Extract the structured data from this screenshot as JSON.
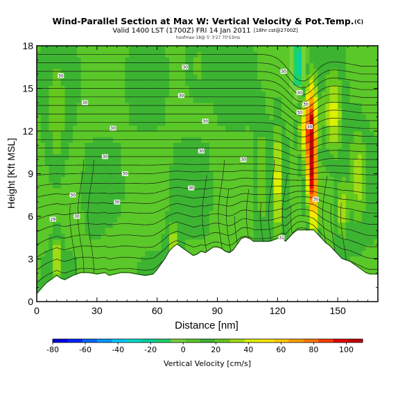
{
  "header": {
    "title": "Wind-Parallel Section at Max W: Vertical Velocity & Pot.Temp.",
    "title_mark": "(C)",
    "valid_line": "Valid 1400 LST (1700Z) FRI 14 Jan 2011",
    "valid_suffix": "[18hr cst@2700Z]",
    "run_line": "hoofmax-18@  5' 3'27 70'53ms"
  },
  "chart_data": {
    "type": "heatmap",
    "title": "Wind-Parallel Section at Max W: Vertical Velocity & Pot.Temp.",
    "xlabel": "Distance [nm]",
    "ylabel": "Height [Kft MSL]",
    "xlim": [
      0,
      170
    ],
    "ylim": [
      0,
      18
    ],
    "x_ticks": [
      0,
      30,
      60,
      90,
      120,
      150
    ],
    "y_ticks": [
      0,
      3,
      6,
      9,
      12,
      15,
      18
    ],
    "grid": false,
    "colorbar": {
      "label": "Vertical Velocity [cm/s]",
      "ticks": [
        -80,
        -60,
        -40,
        -20,
        0,
        20,
        40,
        60,
        80,
        100
      ],
      "range": [
        -80,
        110
      ],
      "colors": [
        "#0000e6",
        "#0022ff",
        "#0066ff",
        "#0099ff",
        "#00c8ff",
        "#00dcc8",
        "#00d2a0",
        "#1ed269",
        "#78d23c",
        "#5ac828",
        "#3cb432",
        "#64c81e",
        "#a0dc14",
        "#dcf000",
        "#ffe600",
        "#ffc800",
        "#ffa000",
        "#ff7800",
        "#ff3c00",
        "#e60000",
        "#c80000"
      ]
    },
    "terrain": [
      [
        0,
        0.5
      ],
      [
        3,
        1.0
      ],
      [
        5,
        1.3
      ],
      [
        7,
        1.5
      ],
      [
        10,
        1.8
      ],
      [
        12,
        1.6
      ],
      [
        14,
        1.5
      ],
      [
        18,
        1.8
      ],
      [
        22,
        2.0
      ],
      [
        26,
        2.0
      ],
      [
        30,
        1.9
      ],
      [
        34,
        2.0
      ],
      [
        36,
        1.8
      ],
      [
        42,
        2.0
      ],
      [
        46,
        2.0
      ],
      [
        50,
        1.9
      ],
      [
        54,
        1.8
      ],
      [
        58,
        1.9
      ],
      [
        60,
        2.2
      ],
      [
        62,
        2.6
      ],
      [
        64,
        3.0
      ],
      [
        66,
        3.5
      ],
      [
        68,
        3.8
      ],
      [
        70,
        4.0
      ],
      [
        72,
        3.8
      ],
      [
        74,
        3.6
      ],
      [
        76,
        3.4
      ],
      [
        78,
        3.2
      ],
      [
        80,
        3.3
      ],
      [
        82,
        3.5
      ],
      [
        84,
        3.4
      ],
      [
        86,
        3.6
      ],
      [
        88,
        3.8
      ],
      [
        90,
        3.8
      ],
      [
        92,
        3.7
      ],
      [
        94,
        3.5
      ],
      [
        96,
        3.4
      ],
      [
        98,
        3.6
      ],
      [
        100,
        4.0
      ],
      [
        102,
        4.4
      ],
      [
        104,
        4.5
      ],
      [
        106,
        4.4
      ],
      [
        108,
        4.2
      ],
      [
        110,
        4.2
      ],
      [
        112,
        4.2
      ],
      [
        114,
        4.2
      ],
      [
        116,
        4.2
      ],
      [
        118,
        4.3
      ],
      [
        120,
        4.4
      ],
      [
        122,
        4.5
      ],
      [
        124,
        4.2
      ],
      [
        126,
        4.5
      ],
      [
        128,
        4.8
      ],
      [
        130,
        5.0
      ],
      [
        132,
        5.0
      ],
      [
        134,
        5.0
      ],
      [
        136,
        5.0
      ],
      [
        138,
        5.0
      ],
      [
        140,
        4.7
      ],
      [
        142,
        4.4
      ],
      [
        144,
        4.1
      ],
      [
        146,
        3.9
      ],
      [
        148,
        3.6
      ],
      [
        150,
        3.3
      ],
      [
        152,
        3.0
      ],
      [
        154,
        2.9
      ],
      [
        156,
        2.8
      ],
      [
        158,
        2.6
      ],
      [
        160,
        2.4
      ],
      [
        162,
        2.2
      ],
      [
        164,
        2.0
      ],
      [
        166,
        1.9
      ],
      [
        168,
        1.9
      ],
      [
        170,
        1.9
      ]
    ],
    "w_features": [
      {
        "x": 137,
        "y": 10.5,
        "sx": 1.6,
        "sy": 2.8,
        "value": 95
      },
      {
        "x": 134,
        "y": 12.5,
        "sx": 3.5,
        "sy": 2.0,
        "value": 40
      },
      {
        "x": 139,
        "y": 7.0,
        "sx": 1.8,
        "sy": 1.8,
        "value": 35
      },
      {
        "x": 131,
        "y": 16.5,
        "sx": 2.5,
        "sy": 2.0,
        "value": -30
      },
      {
        "x": 129,
        "y": 11.0,
        "sx": 2.0,
        "sy": 3.5,
        "value": -10
      },
      {
        "x": 120,
        "y": 8.5,
        "sx": 1.6,
        "sy": 3.0,
        "value": 30
      },
      {
        "x": 112,
        "y": 9.0,
        "sx": 2.0,
        "sy": 3.0,
        "value": 15
      },
      {
        "x": 148,
        "y": 13.0,
        "sx": 3.0,
        "sy": 2.0,
        "value": 30
      },
      {
        "x": 160,
        "y": 9.0,
        "sx": 3.0,
        "sy": 2.5,
        "value": 20
      },
      {
        "x": 152,
        "y": 6.5,
        "sx": 2.0,
        "sy": 1.5,
        "value": 25
      },
      {
        "x": 80,
        "y": 16.5,
        "sx": 4.0,
        "sy": 1.5,
        "value": 15
      },
      {
        "x": 10,
        "y": 12.5,
        "sx": 3.0,
        "sy": 3.0,
        "value": 15
      },
      {
        "x": 10,
        "y": 3.0,
        "sx": 1.5,
        "sy": 1.2,
        "value": 30
      },
      {
        "x": 68,
        "y": 4.2,
        "sx": 2.0,
        "sy": 1.0,
        "value": 25
      },
      {
        "x": 42,
        "y": 3.5,
        "sx": 5.0,
        "sy": 1.2,
        "value": -8
      }
    ],
    "isentrope_base_heights": [
      1.5,
      2.2,
      3.0,
      3.8,
      4.6,
      5.4,
      6.2,
      6.9,
      7.6,
      8.3,
      9.0,
      9.6,
      10.2,
      10.8,
      11.4,
      12.0,
      12.6,
      13.2,
      13.8,
      14.4,
      15.0,
      15.6,
      16.2,
      16.8,
      17.4
    ],
    "isentrope_labels": [
      {
        "x": 8,
        "y": 5.8,
        "text": "29"
      },
      {
        "x": 20,
        "y": 6.0,
        "text": "30"
      },
      {
        "x": 18,
        "y": 7.5,
        "text": "30"
      },
      {
        "x": 40,
        "y": 7.0,
        "text": "30"
      },
      {
        "x": 44,
        "y": 9.0,
        "text": "30"
      },
      {
        "x": 34,
        "y": 10.2,
        "text": "30"
      },
      {
        "x": 38,
        "y": 12.2,
        "text": "30"
      },
      {
        "x": 24,
        "y": 14.0,
        "text": "30"
      },
      {
        "x": 12,
        "y": 15.9,
        "text": "30"
      },
      {
        "x": 74,
        "y": 16.5,
        "text": "30"
      },
      {
        "x": 72,
        "y": 14.5,
        "text": "30"
      },
      {
        "x": 84,
        "y": 12.7,
        "text": "30"
      },
      {
        "x": 82,
        "y": 10.6,
        "text": "30"
      },
      {
        "x": 77,
        "y": 8.0,
        "text": "30"
      },
      {
        "x": 103,
        "y": 10.0,
        "text": "30"
      },
      {
        "x": 123,
        "y": 16.2,
        "text": "30"
      },
      {
        "x": 131,
        "y": 14.7,
        "text": "30"
      },
      {
        "x": 134,
        "y": 13.9,
        "text": "30"
      },
      {
        "x": 131,
        "y": 13.3,
        "text": "30"
      },
      {
        "x": 136,
        "y": 12.3,
        "text": "30"
      },
      {
        "x": 139,
        "y": 7.2,
        "text": "30"
      },
      {
        "x": 122,
        "y": 4.5,
        "text": "31"
      }
    ]
  }
}
